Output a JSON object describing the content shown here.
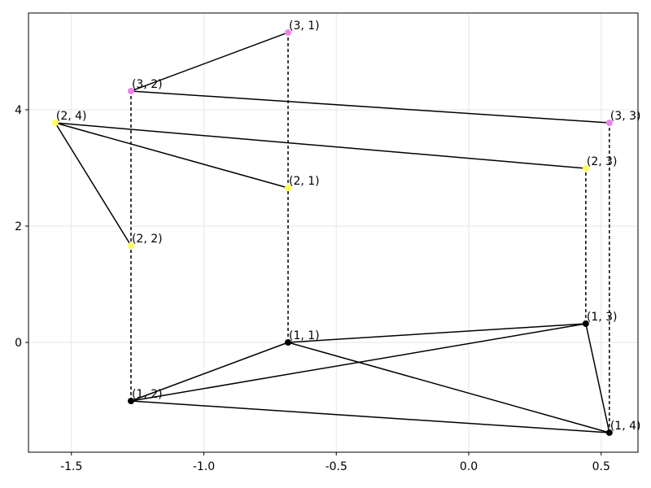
{
  "chart_data": {
    "type": "graph",
    "xlim": [
      -1.662,
      0.639
    ],
    "ylim": [
      -1.888,
      5.664
    ],
    "xticks": [
      -1.5,
      {
        "value": -1.0,
        "label": "-1.0"
      },
      -0.5,
      {
        "value": 0.0,
        "label": "0.0"
      },
      0.5
    ],
    "yticks": [
      0,
      2,
      4
    ],
    "grid": true,
    "points": [
      {
        "label": "(1, 1)",
        "x": -0.682,
        "y": 0.0,
        "color": "#000000"
      },
      {
        "label": "(1, 2)",
        "x": -1.275,
        "y": -1.007,
        "color": "#000000"
      },
      {
        "label": "(1, 3)",
        "x": 0.442,
        "y": 0.322,
        "color": "#000000"
      },
      {
        "label": "(1, 4)",
        "x": 0.531,
        "y": -1.552,
        "color": "#000000"
      },
      {
        "label": "(2, 1)",
        "x": -0.682,
        "y": 2.657,
        "color": "#ffff55"
      },
      {
        "label": "(2, 2)",
        "x": -1.275,
        "y": 1.664,
        "color": "#ffff55"
      },
      {
        "label": "(2, 3)",
        "x": 0.442,
        "y": 2.993,
        "color": "#ffff55"
      },
      {
        "label": "(2, 4)",
        "x": -1.561,
        "y": 3.776,
        "color": "#ffff55"
      },
      {
        "label": "(3, 1)",
        "x": -0.682,
        "y": 5.329,
        "color": "#ee82ee"
      },
      {
        "label": "(3, 2)",
        "x": -1.275,
        "y": 4.322,
        "color": "#ee82ee"
      },
      {
        "label": "(3, 3)",
        "x": 0.531,
        "y": 3.776,
        "color": "#ee82ee"
      }
    ],
    "edges": [
      [
        0,
        1
      ],
      [
        0,
        2
      ],
      [
        0,
        3
      ],
      [
        1,
        2
      ],
      [
        1,
        3
      ],
      [
        2,
        3
      ],
      [
        7,
        5
      ],
      [
        7,
        4
      ],
      [
        7,
        6
      ],
      [
        8,
        9
      ],
      [
        9,
        10
      ]
    ],
    "dashed_edges": [
      [
        0,
        8
      ],
      [
        1,
        9
      ],
      [
        2,
        6
      ],
      [
        3,
        10
      ]
    ]
  }
}
